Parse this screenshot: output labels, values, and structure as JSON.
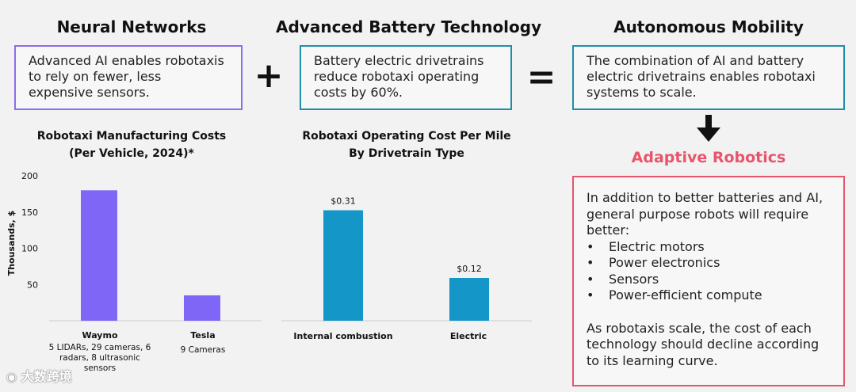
{
  "columns": {
    "neural": {
      "heading": "Neural Networks",
      "text": "Advanced AI enables robotaxis to rely on fewer, less expensive sensors."
    },
    "battery": {
      "heading": "Advanced Battery Technology",
      "text": "Battery electric drivetrains reduce robotaxi operating costs by 60%."
    },
    "autonomy": {
      "heading": "Autonomous Mobility",
      "text": "The combination of AI and battery electric drivetrains enables robotaxi systems to scale."
    }
  },
  "operators": {
    "plus": "+",
    "equals": "="
  },
  "adaptive": {
    "title": "Adaptive Robotics",
    "intro": "In addition to better batteries and AI, general purpose robots will require better:",
    "items": [
      "Electric motors",
      "Power electronics",
      "Sensors",
      "Power-efficient compute"
    ],
    "outro": "As robotaxis scale, the cost of each technology should decline according to its learning curve."
  },
  "watermark": "大数跨境",
  "colors": {
    "purple": "#8066f6",
    "teal": "#1496c8",
    "red": "#e3566c"
  },
  "chart_data": [
    {
      "type": "bar",
      "title": "Robotaxi Manufacturing Costs",
      "subtitle": "(Per Vehicle, 2024)*",
      "ylabel": "Thousands, $",
      "xlabel": "",
      "ylim": [
        0,
        200
      ],
      "yticks": [
        "50",
        "100",
        "150",
        "200"
      ],
      "categories": [
        "Waymo",
        "Tesla"
      ],
      "values": [
        180,
        35
      ],
      "sublabels": [
        "5 LIDARs, 29 cameras, 6 radars, 8 ultrasonic sensors",
        "9 Cameras"
      ]
    },
    {
      "type": "bar",
      "title": "Robotaxi Operating Cost Per Mile",
      "subtitle": "By Drivetrain Type",
      "ylabel": "",
      "xlabel": "",
      "ylim": [
        0,
        0.4
      ],
      "categories": [
        "Internal combustion",
        "Electric"
      ],
      "values": [
        0.31,
        0.12
      ],
      "data_labels": [
        "$0.31",
        "$0.12"
      ]
    }
  ]
}
